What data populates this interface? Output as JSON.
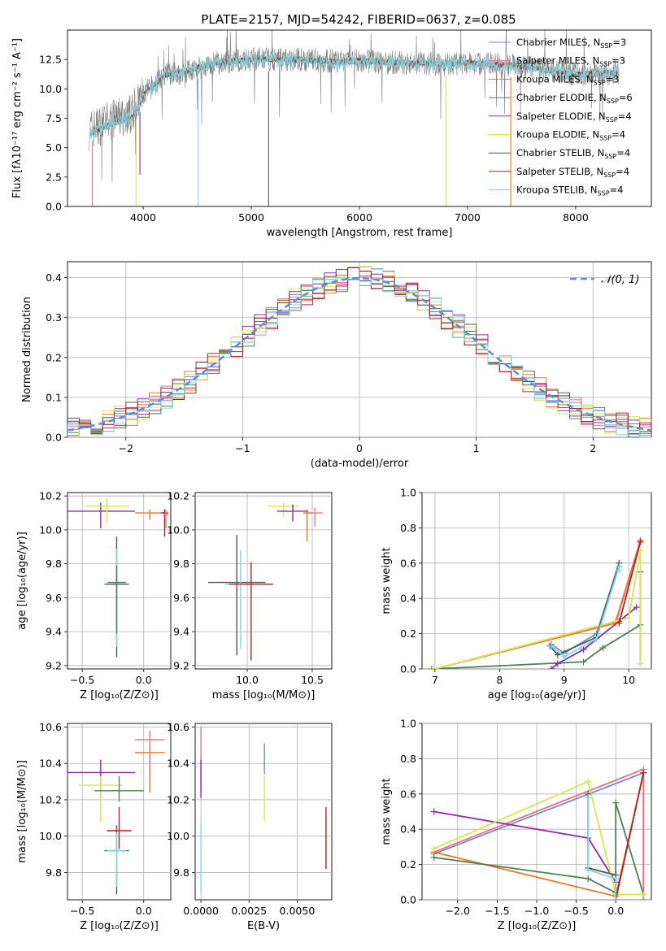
{
  "figure": {
    "title": "PLATE=2157, MJD=54242, FIBERID=0637, z=0.085"
  },
  "chart_data": [
    {
      "id": "spectrum",
      "type": "line",
      "title": "PLATE=2157, MJD=54242, FIBERID=0637, z=0.085",
      "xlabel": "wavelength [Angstrom, rest frame]",
      "ylabel": "Flux [fλ10⁻¹⁷ erg cm⁻² s⁻¹ A⁻¹]",
      "xlim": [
        3300,
        8700
      ],
      "ylim": [
        0,
        15
      ],
      "xticks": [
        4000,
        5000,
        6000,
        7000,
        8000
      ],
      "yticks": [
        "0.0",
        "2.5",
        "5.0",
        "7.5",
        "10.0",
        "12.5"
      ],
      "ytick_values": [
        0,
        2.5,
        5,
        7.5,
        10,
        12.5
      ],
      "grid": false,
      "legend_position": "top-right",
      "data_range_x": [
        3500,
        8400
      ],
      "continuum": {
        "x": [
          3500,
          3600,
          3700,
          3800,
          3900,
          4000,
          4100,
          4200,
          4300,
          4400,
          4500,
          4600,
          4700,
          4800,
          4900,
          5000,
          5200,
          5400,
          5600,
          5800,
          6000,
          6200,
          6400,
          6600,
          6800,
          7000,
          7200,
          7400,
          7600,
          7800,
          8000,
          8200,
          8400
        ],
        "y": [
          6.5,
          6.9,
          7.3,
          7.6,
          7.9,
          9.5,
          10.3,
          11.2,
          11.3,
          11.5,
          11.8,
          12.0,
          12.2,
          12.3,
          12.4,
          12.5,
          12.5,
          12.5,
          12.4,
          12.3,
          12.4,
          12.3,
          12.2,
          12.2,
          12.1,
          12.2,
          12.1,
          12.0,
          11.8,
          11.5,
          11.2,
          11.3,
          11.4
        ]
      },
      "absorption_lines": [
        {
          "x": 3530,
          "depth": 0,
          "series": "Salpeter MILES"
        },
        {
          "x": 3934,
          "depth": 0,
          "series": "Kroupa ELODIE"
        },
        {
          "x": 3970,
          "depth": 2.7,
          "series": "Salpeter ELODIE"
        },
        {
          "x": 4510,
          "depth": 0,
          "series": "Kroupa STELIB"
        },
        {
          "x": 5160,
          "depth": 0,
          "series": "Chabrier STELIB"
        },
        {
          "x": 6800,
          "depth": 0,
          "series": "Kroupa ELODIE"
        },
        {
          "x": 7400,
          "depth": 0,
          "series": "Kroupa MILES"
        }
      ],
      "series": [
        {
          "name": "Chabrier MILES, N",
          "sub": "SSP",
          "suffix": "=3",
          "color": "#6a8fd8"
        },
        {
          "name": "Salpeter MILES, N",
          "sub": "SSP",
          "suffix": "=3",
          "color": "#ee6f82"
        },
        {
          "name": "Kroupa MILES, N",
          "sub": "SSP",
          "suffix": "=3",
          "color": "#e8772a"
        },
        {
          "name": "Chabrier ELODIE, N",
          "sub": "SSP",
          "suffix": "=6",
          "color": "#4f7f4f"
        },
        {
          "name": "Salpeter ELODIE, N",
          "sub": "SSP",
          "suffix": "=4",
          "color": "#8e2ba6"
        },
        {
          "name": "Kroupa ELODIE, N",
          "sub": "SSP",
          "suffix": "=4",
          "color": "#d9e54a"
        },
        {
          "name": "Chabrier STELIB, N",
          "sub": "SSP",
          "suffix": "=4",
          "color": "#555555"
        },
        {
          "name": "Salpeter STELIB, N",
          "sub": "SSP",
          "suffix": "=4",
          "color": "#b22222"
        },
        {
          "name": "Kroupa STELIB, N",
          "sub": "SSP",
          "suffix": "=4",
          "color": "#7fd6e6"
        }
      ],
      "data_color": "#808080"
    },
    {
      "id": "residuals",
      "type": "line",
      "xlabel": "(data-model)/error",
      "ylabel": "Normed distribution",
      "xlim": [
        -2.5,
        2.5
      ],
      "ylim": [
        0,
        0.44
      ],
      "xticks": [
        "−2",
        "−1",
        "0",
        "1",
        "2"
      ],
      "xtick_values": [
        -2,
        -1,
        0,
        1,
        2
      ],
      "yticks": [
        "0.0",
        "0.1",
        "0.2",
        "0.3",
        "0.4"
      ],
      "ytick_values": [
        0,
        0.1,
        0.2,
        0.3,
        0.4
      ],
      "grid": true,
      "legend_position": "top-right",
      "legend_label": "𝒩(0, 1)",
      "normal_color": "#5b8fd6",
      "bin_width": 0.1
    },
    {
      "id": "age-vs-Z",
      "type": "scatter",
      "xlabel": "Z [log₁₀(Z/Z⊙)]",
      "ylabel": "age  [log₁₀(age/yr)]",
      "xlim": [
        -0.62,
        0.22
      ],
      "ylim": [
        9.18,
        10.22
      ],
      "xticks": [
        "−0.5",
        "0.0"
      ],
      "xtick_values": [
        -0.5,
        0.0
      ],
      "yticks": [
        "9.2",
        "9.4",
        "9.6",
        "9.8",
        "10.0",
        "10.2"
      ],
      "ytick_values": [
        9.2,
        9.4,
        9.6,
        9.8,
        10.0,
        10.2
      ],
      "grid": true,
      "points": [
        {
          "x": -0.22,
          "y": 9.68,
          "xerr": 0.1,
          "yerr_lo": 0.43,
          "yerr_hi": 0.28,
          "color": "#555555"
        },
        {
          "x": -0.22,
          "y": 9.69,
          "xerr": 0.08,
          "yerr_lo": 0.38,
          "yerr_hi": 0.2,
          "color": "#7fd6e6"
        },
        {
          "x": -0.22,
          "y": 9.69,
          "xerr": 0.07,
          "yerr_lo": 0.3,
          "yerr_hi": 0.1,
          "color": "#4f7f4f"
        },
        {
          "x": -0.35,
          "y": 10.11,
          "xerr": 0.28,
          "yerr_lo": 0.1,
          "yerr_hi": 0.05,
          "color": "#8e2ba6"
        },
        {
          "x": -0.3,
          "y": 10.14,
          "xerr": 0.18,
          "yerr_lo": 0.1,
          "yerr_hi": 0.05,
          "color": "#d9e54a"
        },
        {
          "x": 0.05,
          "y": 10.1,
          "xerr": 0.12,
          "yerr_lo": 0.04,
          "yerr_hi": 0.02,
          "color": "#e8772a"
        },
        {
          "x": 0.17,
          "y": 10.1,
          "xerr": 0.03,
          "yerr_lo": 0.14,
          "yerr_hi": 0.02,
          "color": "#b22222"
        },
        {
          "x": 0.18,
          "y": 10.09,
          "xerr": 0.02,
          "yerr_lo": 0.08,
          "yerr_hi": 0.03,
          "color": "#ee6f82"
        }
      ]
    },
    {
      "id": "age-vs-mass",
      "type": "scatter",
      "xlabel": "mass [log₁₀(M/M⊙)]",
      "ylabel": "",
      "xlim": [
        9.6,
        10.65
      ],
      "ylim": [
        9.18,
        10.22
      ],
      "xticks": [
        "10.0",
        "10.5"
      ],
      "xtick_values": [
        10.0,
        10.5
      ],
      "yticks": [
        "9.2",
        "9.4",
        "9.6",
        "9.8",
        "10.0",
        "10.2"
      ],
      "ytick_values": [
        9.2,
        9.4,
        9.6,
        9.8,
        10.0,
        10.2
      ],
      "grid": true,
      "points": [
        {
          "x": 9.92,
          "y": 9.69,
          "xerr": 0.22,
          "yerr_lo": 0.43,
          "yerr_hi": 0.28,
          "color": "#555555"
        },
        {
          "x": 9.95,
          "y": 9.68,
          "xerr": 0.12,
          "yerr_lo": 0.38,
          "yerr_hi": 0.2,
          "color": "#7fd6e6"
        },
        {
          "x": 10.03,
          "y": 9.68,
          "xerr": 0.17,
          "yerr_lo": 0.45,
          "yerr_hi": 0.13,
          "color": "#b22222"
        },
        {
          "x": 10.28,
          "y": 10.14,
          "xerr": 0.12,
          "yerr_lo": 0.06,
          "yerr_hi": 0.02,
          "color": "#d9e54a"
        },
        {
          "x": 10.35,
          "y": 10.11,
          "xerr": 0.12,
          "yerr_lo": 0.06,
          "yerr_hi": 0.04,
          "color": "#8e2ba6"
        },
        {
          "x": 10.46,
          "y": 10.1,
          "xerr": 0.03,
          "yerr_lo": 0.17,
          "yerr_hi": 0.02,
          "color": "#e8772a"
        },
        {
          "x": 10.52,
          "y": 10.1,
          "xerr": 0.06,
          "yerr_lo": 0.08,
          "yerr_hi": 0.03,
          "color": "#ee6f82"
        }
      ]
    },
    {
      "id": "weight-vs-age",
      "type": "line",
      "xlabel": "age  [log₁₀(age/yr)]",
      "ylabel": "mass weight",
      "xlim": [
        6.8,
        10.35
      ],
      "ylim": [
        0,
        1
      ],
      "xticks": [
        "7",
        "8",
        "9",
        "10"
      ],
      "xtick_values": [
        7,
        8,
        9,
        10
      ],
      "yticks": [
        "0.0",
        "0.2",
        "0.4",
        "0.6",
        "0.8",
        "1.0"
      ],
      "ytick_values": [
        0,
        0.2,
        0.4,
        0.6,
        0.8,
        1.0
      ],
      "grid": true,
      "series": [
        {
          "name": "Chabrier MILES",
          "color": "#6a8fd8",
          "x": [
            8.8,
            9.0,
            9.5,
            9.85,
            9.85
          ],
          "y": [
            0.14,
            0.09,
            0.2,
            0.6,
            0.58
          ]
        },
        {
          "name": "Salpeter MILES",
          "color": "#ee6f82",
          "x": [
            7.0,
            9.8,
            10.18,
            10.18
          ],
          "y": [
            0.0,
            0.27,
            0.73,
            0.72
          ]
        },
        {
          "name": "Kroupa MILES",
          "color": "#e8772a",
          "x": [
            7.0,
            9.8,
            10.18,
            10.18
          ],
          "y": [
            0.0,
            0.26,
            0.72,
            0.73
          ]
        },
        {
          "name": "Chabrier ELODIE",
          "color": "#4f7f4f",
          "x": [
            6.95,
            9.3,
            9.6,
            10.18,
            10.18,
            10.18
          ],
          "y": [
            0.0,
            0.04,
            0.12,
            0.25,
            0.55,
            0.03
          ]
        },
        {
          "name": "Salpeter ELODIE",
          "color": "#8e2ba6",
          "x": [
            8.8,
            8.9,
            9.3,
            9.85,
            10.12
          ],
          "y": [
            0.0,
            0.03,
            0.11,
            0.27,
            0.35
          ]
        },
        {
          "name": "Kroupa ELODIE",
          "color": "#d9e54a",
          "x": [
            7.0,
            10.0,
            10.18,
            10.18
          ],
          "y": [
            0.0,
            0.29,
            0.67,
            0.03
          ]
        },
        {
          "name": "Chabrier STELIB",
          "color": "#555555",
          "x": [
            8.78,
            8.9,
            9.5,
            9.85,
            9.85
          ],
          "y": [
            0.13,
            0.08,
            0.18,
            0.6,
            0.58
          ]
        },
        {
          "name": "Salpeter STELIB",
          "color": "#b22222",
          "x": [
            9.85,
            10.18
          ],
          "y": [
            0.26,
            0.72
          ]
        },
        {
          "name": "Kroupa STELIB",
          "color": "#7fd6e6",
          "x": [
            8.8,
            9.0,
            9.5,
            9.85,
            9.85
          ],
          "y": [
            0.13,
            0.07,
            0.17,
            0.58,
            0.56
          ]
        }
      ]
    },
    {
      "id": "mass-vs-Z",
      "type": "scatter",
      "xlabel": "Z [log₁₀(Z/Z⊙)]",
      "ylabel": "mass [log₁₀(M/M⊙)]",
      "xlim": [
        -0.62,
        0.22
      ],
      "ylim": [
        9.65,
        10.62
      ],
      "xticks": [
        "−0.5",
        "0.0"
      ],
      "xtick_values": [
        -0.5,
        0.0
      ],
      "yticks": [
        "9.8",
        "10.0",
        "10.2",
        "10.4",
        "10.6"
      ],
      "ytick_values": [
        9.8,
        10.0,
        10.2,
        10.4,
        10.6
      ],
      "grid": true,
      "points": [
        {
          "x": -0.22,
          "y": 9.92,
          "xerr": 0.1,
          "yerr_lo": 0.24,
          "yerr_hi": 0.14,
          "color": "#555555"
        },
        {
          "x": -0.22,
          "y": 9.92,
          "xerr": 0.08,
          "yerr_lo": 0.2,
          "yerr_hi": 0.1,
          "color": "#7fd6e6"
        },
        {
          "x": -0.2,
          "y": 10.03,
          "xerr": 0.1,
          "yerr_lo": 0.1,
          "yerr_hi": 0.13,
          "color": "#b22222"
        },
        {
          "x": -0.35,
          "y": 10.35,
          "xerr": 0.28,
          "yerr_lo": 0.14,
          "yerr_hi": 0.07,
          "color": "#8e2ba6"
        },
        {
          "x": -0.35,
          "y": 10.28,
          "xerr": 0.18,
          "yerr_lo": 0.2,
          "yerr_hi": 0.05,
          "color": "#d9e54a"
        },
        {
          "x": -0.2,
          "y": 10.25,
          "xerr": 0.2,
          "yerr_lo": 0.06,
          "yerr_hi": 0.08,
          "color": "#4f7f4f"
        },
        {
          "x": 0.05,
          "y": 10.46,
          "xerr": 0.12,
          "yerr_lo": 0.22,
          "yerr_hi": 0.02,
          "color": "#e8772a"
        },
        {
          "x": 0.05,
          "y": 10.53,
          "xerr": 0.12,
          "yerr_lo": 0.16,
          "yerr_hi": 0.05,
          "color": "#ee6f82"
        }
      ]
    },
    {
      "id": "mass-vs-EBV",
      "type": "scatter",
      "xlabel": "E(B-V)",
      "ylabel": "",
      "xlim": [
        -0.0003,
        0.0068
      ],
      "ylim": [
        9.65,
        10.62
      ],
      "xticks": [
        "0.0000",
        "0.0025",
        "0.0050"
      ],
      "xtick_values": [
        0,
        0.0025,
        0.005
      ],
      "yticks": [
        "9.8",
        "10.0",
        "10.2",
        "10.4",
        "10.6"
      ],
      "ytick_values": [
        9.8,
        10.0,
        10.2,
        10.4,
        10.6
      ],
      "grid": true,
      "points": [
        {
          "x": 0.0,
          "y": 10.4,
          "xerr": 0,
          "yerr_lo": 0.15,
          "yerr_hi": 0.2,
          "color": "#ee6f82"
        },
        {
          "x": 0.0,
          "y": 10.35,
          "xerr": 0,
          "yerr_lo": 0.14,
          "yerr_hi": 0.07,
          "color": "#8e2ba6"
        },
        {
          "x": 0.0,
          "y": 9.95,
          "xerr": 0,
          "yerr_lo": 0.25,
          "yerr_hi": 0.12,
          "color": "#7fd6e6"
        },
        {
          "x": 0.0033,
          "y": 10.42,
          "xerr": 0,
          "yerr_lo": 0.08,
          "yerr_hi": 0.09,
          "color": "#6a8fd8"
        },
        {
          "x": 0.0033,
          "y": 10.2,
          "xerr": 0,
          "yerr_lo": 0.12,
          "yerr_hi": 0.13,
          "color": "#d9e54a"
        },
        {
          "x": 0.0065,
          "y": 9.98,
          "xerr": 0,
          "yerr_lo": 0.16,
          "yerr_hi": 0.18,
          "color": "#b22222"
        }
      ]
    },
    {
      "id": "weight-vs-Z",
      "type": "line",
      "xlabel": "Z [log₁₀(Z/Z⊙)]",
      "ylabel": "mass weight",
      "xlim": [
        -2.45,
        0.45
      ],
      "ylim": [
        0,
        1
      ],
      "xticks": [
        "−2.0",
        "−1.5",
        "−1.0",
        "−0.5",
        "0.0"
      ],
      "xtick_values": [
        -2.0,
        -1.5,
        -1.0,
        -0.5,
        0.0
      ],
      "yticks": [
        "0.0",
        "0.2",
        "0.4",
        "0.6",
        "0.8",
        "1.0"
      ],
      "ytick_values": [
        0,
        0.2,
        0.4,
        0.6,
        0.8,
        1.0
      ],
      "grid": true,
      "series": [
        {
          "name": "Chabrier MILES",
          "color": "#6a8fd8",
          "x": [
            -2.3,
            0.35,
            0.35
          ],
          "y": [
            0.26,
            0.72,
            0.0
          ]
        },
        {
          "name": "Salpeter MILES",
          "color": "#ee6f82",
          "x": [
            -2.3,
            0.35,
            0.35
          ],
          "y": [
            0.27,
            0.74,
            0.0
          ]
        },
        {
          "name": "Kroupa MILES",
          "color": "#e8772a",
          "x": [
            -2.3,
            0.0,
            0.35
          ],
          "y": [
            0.27,
            0.02,
            0.72
          ]
        },
        {
          "name": "Chabrier ELODIE",
          "color": "#4f7f4f",
          "x": [
            -2.3,
            -0.35,
            0.0,
            0.0,
            0.35
          ],
          "y": [
            0.24,
            0.12,
            0.04,
            0.55,
            0.03
          ]
        },
        {
          "name": "Salpeter ELODIE",
          "color": "#8e2ba6",
          "x": [
            -2.3,
            -0.35,
            0.0
          ],
          "y": [
            0.5,
            0.35,
            0.1
          ]
        },
        {
          "name": "Kroupa ELODIE",
          "color": "#d9e54a",
          "x": [
            -2.3,
            -0.35,
            0.0,
            0.35
          ],
          "y": [
            0.29,
            0.67,
            0.03,
            0.03
          ]
        },
        {
          "name": "Chabrier STELIB",
          "color": "#555555",
          "x": [
            -0.35,
            -0.35,
            0.0,
            0.0
          ],
          "y": [
            0.6,
            0.18,
            0.14,
            0.0
          ]
        },
        {
          "name": "Salpeter STELIB",
          "color": "#b22222",
          "x": [
            0.0,
            0.35
          ],
          "y": [
            0.0,
            0.72
          ]
        },
        {
          "name": "Kroupa STELIB",
          "color": "#7fd6e6",
          "x": [
            -0.35,
            -0.35,
            0.0,
            0.0
          ],
          "y": [
            0.58,
            0.17,
            0.12,
            0.0
          ]
        }
      ]
    }
  ]
}
